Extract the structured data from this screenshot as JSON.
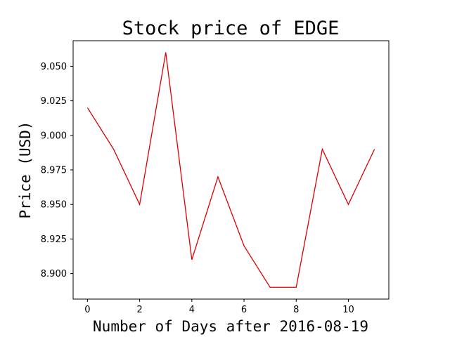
{
  "chart_data": {
    "type": "line",
    "title": "Stock price of EDGE",
    "xlabel": "Number of Days after 2016-08-19",
    "ylabel": "Price (USD)",
    "x": [
      0,
      1,
      2,
      3,
      4,
      5,
      6,
      7,
      8,
      9,
      10,
      11
    ],
    "series": [
      {
        "values": [
          9.02,
          8.99,
          8.95,
          9.06,
          8.91,
          8.97,
          8.92,
          8.89,
          8.89,
          8.99,
          8.95,
          8.99
        ],
        "color": "#dd0000"
      }
    ],
    "xlim": [
      -0.55,
      11.55
    ],
    "ylim": [
      8.8815,
      9.0685
    ],
    "xticks": [
      0,
      2,
      4,
      6,
      8,
      10
    ],
    "xtick_labels": [
      "0",
      "2",
      "4",
      "6",
      "8",
      "10"
    ],
    "yticks": [
      8.9,
      8.925,
      8.95,
      8.975,
      9.0,
      9.025,
      9.05
    ],
    "ytick_labels": [
      "8.900",
      "8.925",
      "8.950",
      "8.975",
      "9.000",
      "9.025",
      "9.050"
    ],
    "grid": false,
    "legend": "none"
  }
}
